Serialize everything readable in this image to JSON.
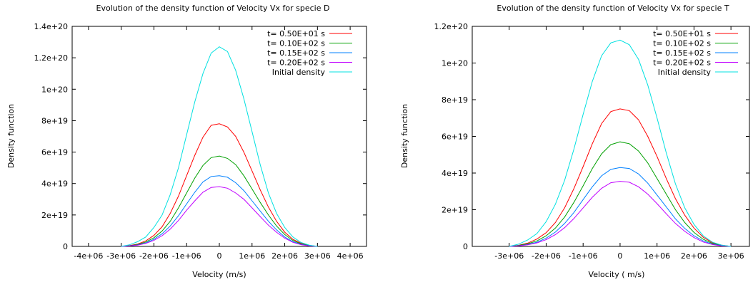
{
  "chart_data": [
    {
      "type": "line",
      "title": "Evolution of the density function of Velocity Vx for specie D",
      "xlabel": "Velocity (m/s)",
      "ylabel": "Density function",
      "xlim": [
        -4500000,
        4500000
      ],
      "ylim": [
        0,
        140000000000000000000
      ],
      "xticks": [
        {
          "value": -4000000,
          "label": "-4e+06"
        },
        {
          "value": -3000000,
          "label": "-3e+06"
        },
        {
          "value": -2000000,
          "label": "-2e+06"
        },
        {
          "value": -1000000,
          "label": "-1e+06"
        },
        {
          "value": 0,
          "label": "0"
        },
        {
          "value": 1000000,
          "label": "1e+06"
        },
        {
          "value": 2000000,
          "label": "2e+06"
        },
        {
          "value": 3000000,
          "label": "3e+06"
        },
        {
          "value": 4000000,
          "label": "4e+06"
        }
      ],
      "yticks": [
        {
          "value": 0,
          "label": "0"
        },
        {
          "value": 20000000000000000000,
          "label": "2e+19"
        },
        {
          "value": 40000000000000000000,
          "label": "4e+19"
        },
        {
          "value": 60000000000000000000,
          "label": "6e+19"
        },
        {
          "value": 80000000000000000000,
          "label": "8e+19"
        },
        {
          "value": 100000000000000000000,
          "label": "1e+20"
        },
        {
          "value": 120000000000000000000,
          "label": "1.2e+20"
        },
        {
          "value": 140000000000000000000,
          "label": "1.4e+20"
        }
      ],
      "legend_position": "top-right",
      "x": [
        -3000000,
        -2750000,
        -2500000,
        -2250000,
        -2000000,
        -1750000,
        -1500000,
        -1250000,
        -1000000,
        -750000,
        -500000,
        -250000,
        0,
        250000,
        500000,
        750000,
        1000000,
        1250000,
        1500000,
        1750000,
        2000000,
        2250000,
        2500000,
        2750000,
        3000000
      ],
      "series": [
        {
          "name": "t= 0.50E+01 s",
          "color": "#ff0000",
          "values": [
            0,
            5e+17,
            1.5e+18,
            3.5e+18,
            7e+18,
            1.25e+19,
            2.1e+19,
            3.2e+19,
            4.5e+19,
            5.8e+19,
            6.95e+19,
            7.7e+19,
            7.8e+19,
            7.6e+19,
            7e+19,
            6e+19,
            4.8e+19,
            3.6e+19,
            2.5e+19,
            1.6e+19,
            9e+18,
            4.5e+18,
            2e+18,
            7e+17,
            0
          ]
        },
        {
          "name": "t= 0.10E+02 s",
          "color": "#00a000",
          "values": [
            0,
            4e+17,
            1.2e+18,
            2.8e+18,
            5.5e+18,
            9.8e+18,
            1.6e+19,
            2.45e+19,
            3.4e+19,
            4.35e+19,
            5.15e+19,
            5.65e+19,
            5.75e+19,
            5.6e+19,
            5.2e+19,
            4.5e+19,
            3.65e+19,
            2.8e+19,
            2e+19,
            1.3e+19,
            7.5e+18,
            3.8e+18,
            1.6e+18,
            5e+17,
            0
          ]
        },
        {
          "name": "t= 0.15E+02 s",
          "color": "#0080ff",
          "values": [
            0,
            3e+17,
            9e+17,
            2.2e+18,
            4.5e+18,
            8e+18,
            1.3e+19,
            1.95e+19,
            2.7e+19,
            3.45e+19,
            4.1e+19,
            4.45e+19,
            4.5e+19,
            4.4e+19,
            4.05e+19,
            3.55e+19,
            2.9e+19,
            2.25e+19,
            1.6e+19,
            1.05e+19,
            6e+18,
            3e+18,
            1.3e+18,
            4e+17,
            0
          ]
        },
        {
          "name": "t= 0.20E+02 s",
          "color": "#c000ff",
          "values": [
            0,
            2.5e+17,
            8e+17,
            1.9e+18,
            3.8e+18,
            6.8e+18,
            1.1e+19,
            1.65e+19,
            2.3e+19,
            2.9e+19,
            3.45e+19,
            3.75e+19,
            3.8e+19,
            3.7e+19,
            3.4e+19,
            3e+19,
            2.45e+19,
            1.9e+19,
            1.35e+19,
            9e+18,
            5.2e+18,
            2.6e+18,
            1.1e+18,
            3.5e+17,
            0
          ]
        },
        {
          "name": "Initial density",
          "color": "#00e0e0",
          "values": [
            0,
            1e+18,
            3e+18,
            6e+18,
            1.2e+19,
            2e+19,
            3.3e+19,
            5e+19,
            7.1e+19,
            9.2e+19,
            1.1e+20,
            1.23e+20,
            1.27e+20,
            1.24e+20,
            1.12e+20,
            9.4e+19,
            7.3e+19,
            5.2e+19,
            3.4e+19,
            2.1e+19,
            1.2e+19,
            6e+18,
            2.5e+18,
            8e+17,
            0
          ]
        }
      ]
    },
    {
      "type": "line",
      "title": "Evolution of the density function of Velocity Vx for specie T",
      "xlabel": "Velocity ( m/s)",
      "ylabel": "Density function",
      "xlim": [
        -4000000,
        3500000
      ],
      "ylim": [
        0,
        120000000000000000000
      ],
      "xticks": [
        {
          "value": -3000000,
          "label": "-3e+06"
        },
        {
          "value": -2000000,
          "label": "-2e+06"
        },
        {
          "value": -1000000,
          "label": "-1e+06"
        },
        {
          "value": 0,
          "label": "0"
        },
        {
          "value": 1000000,
          "label": "1e+06"
        },
        {
          "value": 2000000,
          "label": "2e+06"
        },
        {
          "value": 3000000,
          "label": "3e+06"
        }
      ],
      "yticks": [
        {
          "value": 0,
          "label": "0"
        },
        {
          "value": 20000000000000000000,
          "label": "2e+19"
        },
        {
          "value": 40000000000000000000,
          "label": "4e+19"
        },
        {
          "value": 60000000000000000000,
          "label": "6e+19"
        },
        {
          "value": 80000000000000000000,
          "label": "8e+19"
        },
        {
          "value": 100000000000000000000,
          "label": "1e+20"
        },
        {
          "value": 120000000000000000000,
          "label": "1.2e+20"
        }
      ],
      "legend_position": "top-right",
      "x": [
        -3000000,
        -2750000,
        -2500000,
        -2250000,
        -2000000,
        -1750000,
        -1500000,
        -1250000,
        -1000000,
        -750000,
        -500000,
        -250000,
        0,
        250000,
        500000,
        750000,
        1000000,
        1250000,
        1500000,
        1750000,
        2000000,
        2250000,
        2500000,
        2750000,
        3000000
      ],
      "series": [
        {
          "name": "t= 0.50E+01 s",
          "color": "#ff0000",
          "values": [
            0,
            6e+17,
            1.8e+18,
            4e+18,
            7.5e+18,
            1.3e+19,
            2.1e+19,
            3.15e+19,
            4.35e+19,
            5.6e+19,
            6.7e+19,
            7.35e+19,
            7.5e+19,
            7.4e+19,
            6.9e+19,
            6e+19,
            4.9e+19,
            3.7e+19,
            2.6e+19,
            1.7e+19,
            1e+19,
            5e+18,
            2e+18,
            7e+17,
            0
          ]
        },
        {
          "name": "t= 0.10E+02 s",
          "color": "#00a000",
          "values": [
            0,
            4.5e+17,
            1.4e+18,
            3e+18,
            5.8e+18,
            1e+19,
            1.6e+19,
            2.4e+19,
            3.3e+19,
            4.25e+19,
            5.05e+19,
            5.55e+19,
            5.7e+19,
            5.6e+19,
            5.2e+19,
            4.55e+19,
            3.7e+19,
            2.85e+19,
            2e+19,
            1.3e+19,
            7.6e+18,
            3.9e+18,
            1.6e+18,
            5e+17,
            0
          ]
        },
        {
          "name": "t= 0.15E+02 s",
          "color": "#0080ff",
          "values": [
            0,
            3.5e+17,
            1e+18,
            2.3e+18,
            4.5e+18,
            7.8e+18,
            1.25e+19,
            1.85e+19,
            2.55e+19,
            3.25e+19,
            3.85e+19,
            4.2e+19,
            4.3e+19,
            4.25e+19,
            3.95e+19,
            3.45e+19,
            2.8e+19,
            2.15e+19,
            1.5e+19,
            9.8e+18,
            5.8e+18,
            3e+18,
            1.2e+18,
            4e+17,
            0
          ]
        },
        {
          "name": "t= 0.20E+02 s",
          "color": "#c000ff",
          "values": [
            0,
            3e+17,
            8.5e+17,
            1.9e+18,
            3.7e+18,
            6.4e+18,
            1.02e+19,
            1.52e+19,
            2.1e+19,
            2.68e+19,
            3.17e+19,
            3.47e+19,
            3.55e+19,
            3.5e+19,
            3.25e+19,
            2.85e+19,
            2.33e+19,
            1.78e+19,
            1.25e+19,
            8.2e+18,
            4.8e+18,
            2.4e+18,
            1e+18,
            3e+17,
            0
          ]
        },
        {
          "name": "Initial density",
          "color": "#00e0e0",
          "values": [
            0,
            1.2e+18,
            3.5e+18,
            7e+18,
            1.35e+19,
            2.3e+19,
            3.6e+19,
            5.3e+19,
            7.2e+19,
            9e+19,
            1.04e+20,
            1.11e+20,
            1.125e+20,
            1.1e+20,
            1.02e+20,
            8.8e+19,
            7e+19,
            5.1e+19,
            3.4e+19,
            2.1e+19,
            1.2e+19,
            5.8e+18,
            2.3e+18,
            7e+17,
            0
          ]
        }
      ]
    }
  ]
}
